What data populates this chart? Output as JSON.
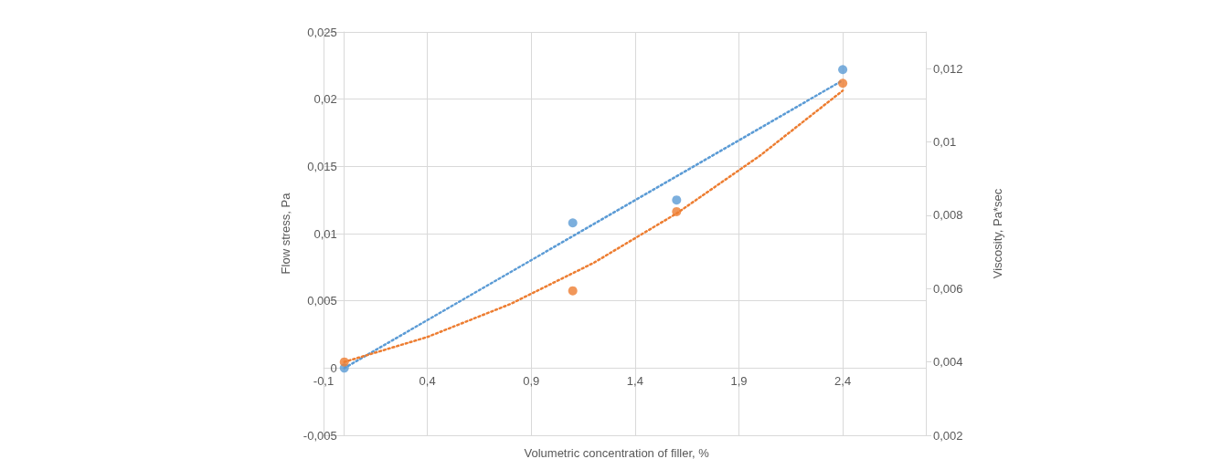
{
  "chart_data": {
    "type": "scatter",
    "xlabel": "Volumetric concentration of filler, %",
    "ylabel": "Flow stress, Pa",
    "y2label": "Viscosity, Pa*sec",
    "xlim": [
      -0.1,
      2.8
    ],
    "xticks": [
      {
        "value": -0.1,
        "label": "-0,1"
      },
      {
        "value": 0.4,
        "label": "0,4"
      },
      {
        "value": 0.9,
        "label": "0,9"
      },
      {
        "value": 1.4,
        "label": "1,4"
      },
      {
        "value": 1.9,
        "label": "1,9"
      },
      {
        "value": 2.4,
        "label": "2,4"
      }
    ],
    "ylim": [
      -0.005,
      0.025
    ],
    "yticks": [
      {
        "value": -0.005,
        "label": "-0,005"
      },
      0,
      {
        "value": 0.005,
        "label": "0,005"
      },
      {
        "value": 0.01,
        "label": "0,01"
      },
      {
        "value": 0.015,
        "label": "0,015"
      },
      {
        "value": 0.02,
        "label": "0,02"
      },
      {
        "value": 0.025,
        "label": "0,025"
      }
    ],
    "y2lim": [
      0.002,
      0.013
    ],
    "y2ticks": [
      {
        "value": 0.002,
        "label": "0,002"
      },
      {
        "value": 0.004,
        "label": "0,004"
      },
      {
        "value": 0.006,
        "label": "0,006"
      },
      {
        "value": 0.008,
        "label": "0,008"
      },
      {
        "value": 0.01,
        "label": "0,01"
      },
      {
        "value": 0.012,
        "label": "0,012"
      }
    ],
    "grid": true,
    "marker": "circle",
    "series": [
      {
        "type": "line",
        "color": "#5b9bd5",
        "marker": "none",
        "line_style": "dotted",
        "x": [
          0,
          2.4
        ],
        "values": [
          0,
          0.0214
        ]
      },
      {
        "type": "line",
        "color": "#ed7d31",
        "marker": "none",
        "line_style": "dotted",
        "axis": "y2",
        "x": [
          0,
          0.4,
          0.8,
          1.2,
          1.6,
          2.0,
          2.4
        ],
        "values": [
          0.004,
          0.00468,
          0.00558,
          0.0067,
          0.00805,
          0.00962,
          0.0114
        ]
      },
      {
        "type": "scatter",
        "color": "#5b9bd5",
        "x": [
          0,
          1.1,
          1.6,
          2.4
        ],
        "values": [
          0,
          0.0108,
          0.0125,
          0.0222
        ]
      },
      {
        "type": "scatter",
        "color": "#ed7d31",
        "axis": "y2",
        "x": [
          0,
          1.1,
          1.6,
          2.4
        ],
        "values": [
          0.004,
          0.00594,
          0.0081,
          0.0116
        ]
      }
    ]
  }
}
